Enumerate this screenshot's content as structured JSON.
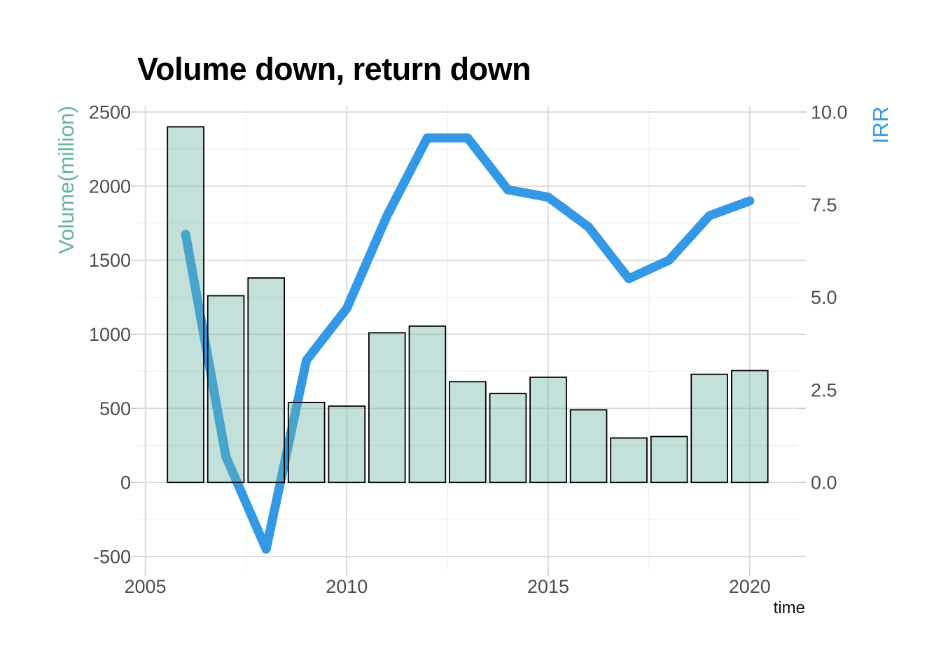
{
  "title": "Volume down, return down",
  "axes": {
    "x_label": "time",
    "y_left_label": "Volume(million)",
    "y_right_label": "IRR",
    "x_tick_labels": [
      "2005",
      "2010",
      "2015",
      "2020"
    ],
    "y_left_tick_labels": [
      "-500",
      "0",
      "500",
      "1000",
      "1500",
      "2000",
      "2500"
    ],
    "y_right_tick_labels": [
      "0.0",
      "2.5",
      "5.0",
      "7.5",
      "10.0"
    ]
  },
  "chart_data": {
    "type": "bar+line",
    "title": "Volume down, return down",
    "xlabel": "time",
    "ylabel_left": "Volume(million)",
    "ylabel_right": "IRR",
    "categories": [
      2006,
      2007,
      2008,
      2009,
      2010,
      2011,
      2012,
      2013,
      2014,
      2015,
      2016,
      2017,
      2018,
      2019,
      2020
    ],
    "series": [
      {
        "name": "Volume(million)",
        "type": "bar",
        "axis": "left",
        "values": [
          2400,
          1260,
          1380,
          540,
          515,
          1010,
          1055,
          680,
          600,
          710,
          490,
          300,
          310,
          730,
          755
        ]
      },
      {
        "name": "IRR",
        "type": "line",
        "axis": "right",
        "values": [
          6.7,
          0.7,
          -1.8,
          3.3,
          4.7,
          7.2,
          9.3,
          9.3,
          7.9,
          7.7,
          6.9,
          5.5,
          6.0,
          7.2,
          7.6
        ]
      }
    ],
    "xlim": [
      2004.8,
      2021.2
    ],
    "ylim_left": [
      -588,
      2542
    ],
    "ylim_right": [
      0,
      10
    ],
    "x_major_ticks": [
      2005,
      2010,
      2015,
      2020
    ],
    "x_minor_ticks": [
      2007.5,
      2012.5,
      2017.5
    ],
    "y_major_ticks": [
      -500,
      0,
      500,
      1000,
      1500,
      2000,
      2500
    ],
    "y_minor_ticks": [
      -250,
      250,
      750,
      1250,
      1750,
      2250
    ],
    "y_right_major_ticks": [
      0,
      2.5,
      5,
      7.5,
      10
    ],
    "right_to_left_factor": 250,
    "bar_width_years": 0.9,
    "grid": true,
    "legend": "none"
  },
  "colors": {
    "bar_fill": "#69b3a2",
    "bar_fill_opacity": 0.4,
    "bar_stroke": "#000000",
    "line": "#3399e6",
    "left_axis_title": "#69b3a2",
    "right_axis_title": "#3399e6",
    "tick_label": "#4d4d4d",
    "grid_major": "#d9d9d9",
    "grid_minor": "#ececec",
    "tick_mark": "#c4c4c4",
    "title": "#000000"
  }
}
